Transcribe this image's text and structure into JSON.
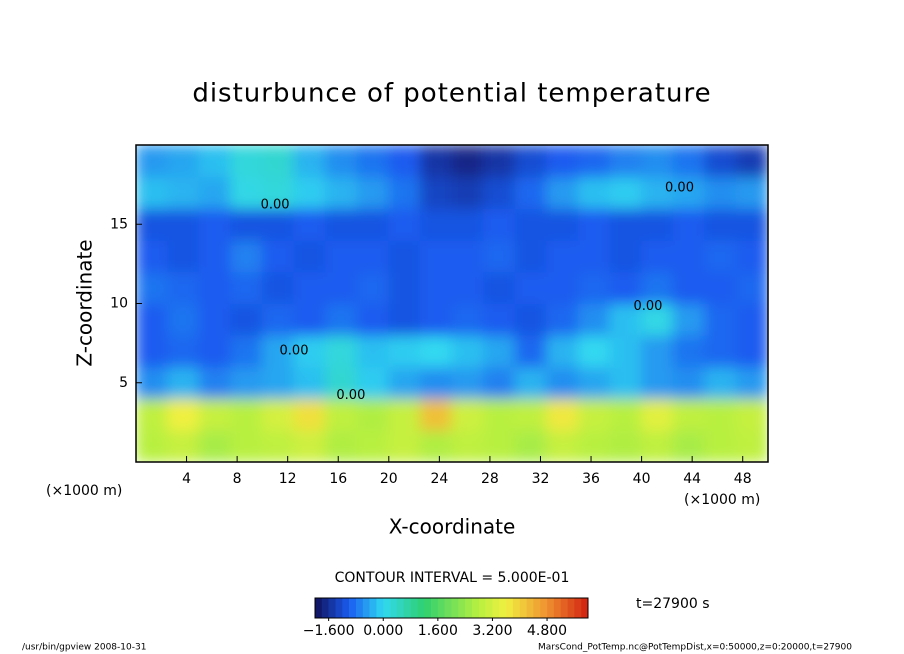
{
  "chart_data": {
    "type": "contour",
    "title": "disturbunce of potential temperature",
    "x_label": "X-coordinate",
    "y_label": "Z-coordinate",
    "x_unit": "(×1000 m)",
    "y_unit": "(×1000 m)",
    "contour_interval": "CONTOUR INTERVAL = 5.000E-01",
    "time_label": "t=27900 s",
    "footer_left": "/usr/bin/gpview   2008-10-31",
    "footer_right": "MarsCond_PotTemp.nc@PotTempDist,x=0:50000,z=0:20000,t=27900",
    "xlim": [
      0,
      50
    ],
    "ylim": [
      0,
      20
    ],
    "xticks": [
      4,
      8,
      12,
      16,
      20,
      24,
      28,
      32,
      36,
      40,
      44,
      48
    ],
    "yticks": [
      5,
      10,
      15
    ],
    "x": [
      0,
      2.5,
      5,
      7.5,
      10,
      12.5,
      15,
      17.5,
      20,
      22.5,
      25,
      27.5,
      30,
      32.5,
      35,
      37.5,
      40,
      42.5,
      45,
      47.5,
      50
    ],
    "z": [
      0,
      2,
      4,
      6,
      8,
      10,
      12,
      14,
      16,
      18,
      20
    ],
    "values": [
      [
        2.8,
        3.0,
        2.6,
        2.8,
        2.9,
        3.1,
        2.7,
        2.8,
        3.0,
        2.7,
        2.9,
        2.8,
        2.6,
        3.0,
        2.8,
        2.7,
        2.9,
        2.6,
        2.8,
        2.9
      ],
      [
        2.9,
        3.6,
        3.0,
        2.8,
        3.2,
        3.8,
        2.9,
        2.7,
        3.0,
        4.2,
        3.1,
        2.8,
        2.9,
        3.7,
        3.0,
        2.8,
        3.4,
        2.9,
        2.8,
        3.0
      ],
      [
        -0.6,
        -0.3,
        -0.7,
        -0.5,
        -0.4,
        -0.2,
        0.3,
        -0.1,
        -0.4,
        -0.6,
        -0.5,
        -0.7,
        -0.3,
        -0.6,
        -0.4,
        -0.2,
        -0.5,
        -0.6,
        -0.3,
        -0.5
      ],
      [
        -1.0,
        -0.9,
        -1.0,
        -0.8,
        -0.4,
        -0.1,
        0.2,
        -0.2,
        -0.1,
        0.0,
        -0.2,
        -0.4,
        -0.9,
        -0.3,
        0.0,
        -0.2,
        -0.5,
        -0.8,
        -0.9,
        -1.0
      ],
      [
        -1.0,
        -0.8,
        -1.0,
        -1.1,
        -0.9,
        -1.0,
        -0.8,
        -1.0,
        -1.1,
        -1.0,
        -0.9,
        -1.0,
        -1.1,
        -0.9,
        -0.6,
        -0.2,
        0.1,
        -0.5,
        -0.9,
        -1.0
      ],
      [
        -0.8,
        -0.9,
        -1.0,
        -0.9,
        -1.1,
        -1.0,
        -1.0,
        -0.9,
        -1.1,
        -1.0,
        -1.0,
        -1.1,
        -1.0,
        -1.0,
        -0.9,
        -1.0,
        -0.8,
        -1.0,
        -1.0,
        -0.9
      ],
      [
        -1.0,
        -1.1,
        -1.0,
        -0.7,
        -1.0,
        -1.1,
        -1.0,
        -1.0,
        -1.1,
        -1.0,
        -1.0,
        -0.9,
        -1.1,
        -1.0,
        -1.0,
        -1.1,
        -1.0,
        -1.0,
        -0.9,
        -1.0
      ],
      [
        -1.1,
        -1.1,
        -1.0,
        -1.1,
        -1.1,
        -1.0,
        -1.1,
        -1.1,
        -1.0,
        -1.1,
        -1.1,
        -1.0,
        -1.1,
        -1.1,
        -1.0,
        -1.1,
        -1.1,
        -1.0,
        -1.1,
        -1.1
      ],
      [
        -0.2,
        -0.3,
        -0.4,
        0.1,
        0.2,
        -0.1,
        -0.3,
        -0.5,
        -0.8,
        -1.3,
        -1.4,
        -1.2,
        -0.9,
        -0.5,
        -0.2,
        -0.1,
        -0.3,
        -0.4,
        -0.6,
        -0.5
      ],
      [
        -0.5,
        -0.4,
        -0.2,
        0.2,
        0.3,
        -0.3,
        -0.6,
        -0.8,
        -1.0,
        -1.5,
        -1.7,
        -1.5,
        -1.2,
        -1.0,
        -0.9,
        -0.7,
        -0.6,
        -0.8,
        -1.2,
        -1.4
      ]
    ],
    "contour_labels": [
      {
        "text": "0.00",
        "x": 11,
        "z": 16.2
      },
      {
        "text": "0.00",
        "x": 43,
        "z": 17.3
      },
      {
        "text": "0.00",
        "x": 40.5,
        "z": 9.8
      },
      {
        "text": "0.00",
        "x": 12.5,
        "z": 7.0
      },
      {
        "text": "0.00",
        "x": 17,
        "z": 4.2
      }
    ],
    "colormap": [
      {
        "value": -2.0,
        "color": "#10105a"
      },
      {
        "value": -1.0,
        "color": "#1a5cf0"
      },
      {
        "value": 0.0,
        "color": "#30d8f0"
      },
      {
        "value": 1.2,
        "color": "#30d070"
      },
      {
        "value": 2.8,
        "color": "#b8f040"
      },
      {
        "value": 3.6,
        "color": "#f0f040"
      },
      {
        "value": 4.8,
        "color": "#f09030"
      },
      {
        "value": 6.0,
        "color": "#d02010"
      }
    ],
    "colorbar_ticks": [
      {
        "value": -1.6,
        "label": "−1.600"
      },
      {
        "value": 0.0,
        "label": "0.000"
      },
      {
        "value": 1.6,
        "label": "1.600"
      },
      {
        "value": 3.2,
        "label": "3.200"
      },
      {
        "value": 4.8,
        "label": "4.800"
      }
    ]
  }
}
